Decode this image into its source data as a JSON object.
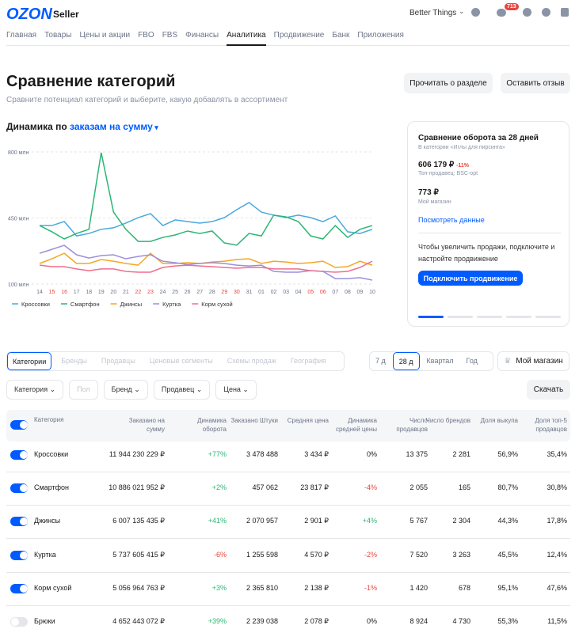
{
  "header": {
    "logo": "OZON",
    "product": "Seller",
    "account": "Better Things",
    "badge": "713"
  },
  "nav": {
    "items": [
      "Главная",
      "Товары",
      "Цены и акции",
      "FBO",
      "FBS",
      "Финансы",
      "Аналитика",
      "Продвижение",
      "Банк",
      "Приложения"
    ],
    "active": 6
  },
  "page": {
    "title": "Сравнение категорий",
    "subtitle": "Сравните потенциал категорий и выберите, какую добавлять в ассортимент",
    "buttons": [
      "Прочитать о разделе",
      "Оставить отзыв"
    ]
  },
  "chart_heading": {
    "text": "Динамика по",
    "link": "заказам на сумму"
  },
  "chart_data": {
    "type": "line",
    "categories": [
      "14",
      "15",
      "16",
      "17",
      "18",
      "19",
      "20",
      "21",
      "22",
      "23",
      "24",
      "25",
      "26",
      "27",
      "28",
      "29",
      "30",
      "31",
      "01",
      "02",
      "03",
      "04",
      "05",
      "06",
      "07",
      "08",
      "09",
      "10"
    ],
    "weekend_indices": [
      1,
      2,
      8,
      9,
      15,
      16,
      22,
      23
    ],
    "weekend_color": "#e8453c",
    "ylim": [
      100,
      800
    ],
    "yticks": [
      {
        "value": 100,
        "label": "100 млн"
      },
      {
        "value": 450,
        "label": "450 млн"
      },
      {
        "value": 800,
        "label": "800 млн"
      }
    ],
    "grid": true,
    "series": [
      {
        "name": "Кроссовки",
        "color": "#4aa8e0",
        "values": [
          410,
          410,
          431,
          355,
          368,
          390,
          398,
          423,
          452,
          473,
          410,
          440,
          431,
          423,
          431,
          452,
          494,
          532,
          481,
          465,
          452,
          465,
          452,
          431,
          461,
          377,
          368,
          390
        ]
      },
      {
        "name": "Смартфон",
        "color": "#2bb673",
        "values": [
          410,
          377,
          339,
          368,
          390,
          796,
          481,
          390,
          326,
          326,
          347,
          360,
          381,
          368,
          381,
          318,
          306,
          368,
          355,
          465,
          456,
          431,
          355,
          339,
          410,
          347,
          390,
          410
        ]
      },
      {
        "name": "Джинсы",
        "color": "#f5a623",
        "values": [
          209,
          234,
          263,
          209,
          209,
          230,
          221,
          209,
          200,
          263,
          209,
          209,
          213,
          209,
          217,
          221,
          230,
          234,
          209,
          221,
          217,
          209,
          213,
          221,
          188,
          192,
          221,
          200
        ]
      },
      {
        "name": "Куртка",
        "color": "#9b8fe0",
        "values": [
          263,
          284,
          305,
          255,
          238,
          251,
          255,
          234,
          246,
          255,
          221,
          213,
          204,
          209,
          213,
          209,
          200,
          196,
          200,
          167,
          163,
          163,
          171,
          167,
          129,
          129,
          134,
          121
        ]
      },
      {
        "name": "Корм сухой",
        "color": "#f06d8c",
        "values": [
          200,
          192,
          192,
          180,
          171,
          180,
          180,
          167,
          163,
          163,
          188,
          196,
          200,
          196,
          192,
          188,
          184,
          188,
          188,
          180,
          180,
          180,
          171,
          167,
          163,
          167,
          188,
          221
        ]
      }
    ]
  },
  "card": {
    "title": "Сравнение оборота за 28 дней",
    "subtitle": "В категории «Иглы для пирсинга»",
    "value": "606 179 ₽",
    "change": "-11%",
    "top_seller": "Топ-продавец: BSC-opt",
    "my_value": "773 ₽",
    "my_label": "Мой магазин",
    "link": "Посмотреть данные",
    "text": "Чтобы увеличить продажи, подключите и настройте продвижение",
    "button": "Подключить продвижение"
  },
  "tabs": {
    "items": [
      "Категории",
      "Бренды",
      "Продавцы",
      "Ценовые сегменты",
      "Схемы продаж",
      "География"
    ],
    "active": 0
  },
  "periods": {
    "items": [
      "7 д",
      "28 д",
      "Квартал",
      "Год"
    ],
    "active": 1,
    "my_store": "Мой магазин"
  },
  "filters": {
    "items": [
      "Категория",
      "Пол",
      "Бренд",
      "Продавец",
      "Цена"
    ],
    "download": "Скачать"
  },
  "table": {
    "columns": [
      "Категория",
      "Заказано на сумму",
      "Динамика оборота",
      "Заказано Штуки",
      "Средняя цена",
      "Динамика средней цены",
      "Число продавцов",
      "Число брендов",
      "Доля выкупа",
      "Доля топ-5 продавцов"
    ],
    "rows": [
      {
        "on": true,
        "cells": [
          "Кроссовки",
          "11 944 230 229 ₽",
          "+77%",
          "3 478 488",
          "3 434 ₽",
          "0%",
          "13 375",
          "2 281",
          "56,9%",
          "35,4%"
        ]
      },
      {
        "on": true,
        "cells": [
          "Смартфон",
          "10 886 021 952 ₽",
          "+2%",
          "457 062",
          "23 817 ₽",
          "-4%",
          "2 055",
          "165",
          "80,7%",
          "30,8%"
        ]
      },
      {
        "on": true,
        "cells": [
          "Джинсы",
          "6 007 135 435 ₽",
          "+41%",
          "2 070 957",
          "2 901 ₽",
          "+4%",
          "5 767",
          "2 304",
          "44,3%",
          "17,8%"
        ]
      },
      {
        "on": true,
        "cells": [
          "Куртка",
          "5 737 605 415 ₽",
          "-6%",
          "1 255 598",
          "4 570 ₽",
          "-2%",
          "7 520",
          "3 263",
          "45,5%",
          "12,4%"
        ]
      },
      {
        "on": true,
        "cells": [
          "Корм сухой",
          "5 056 964 763 ₽",
          "+3%",
          "2 365 810",
          "2 138 ₽",
          "-1%",
          "1 420",
          "678",
          "95,1%",
          "47,6%"
        ]
      },
      {
        "on": false,
        "cells": [
          "Брюки",
          "4 652 443 072 ₽",
          "+39%",
          "2 239 038",
          "2 078 ₽",
          "0%",
          "8 924",
          "4 730",
          "55,3%",
          "11,5%"
        ]
      }
    ]
  }
}
